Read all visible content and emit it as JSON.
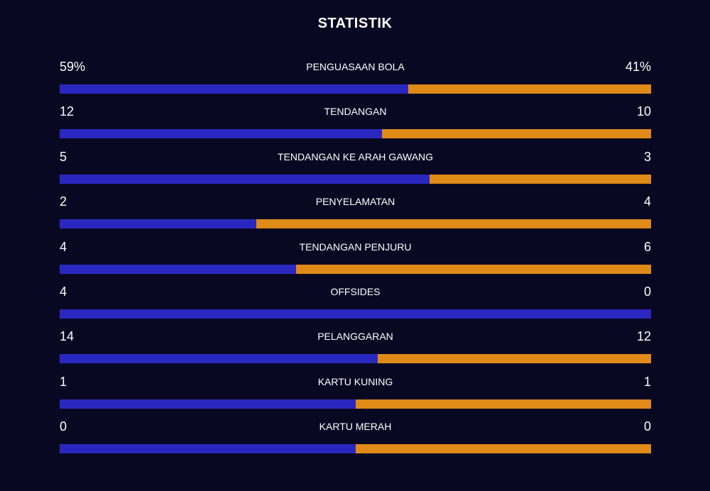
{
  "title": "STATISTIK",
  "colors": {
    "home": "#2a27c1",
    "away": "#e08a18",
    "background": "#090822",
    "text": "#ffffff"
  },
  "stats": [
    {
      "label": "PENGUASAAN BOLA",
      "home": "59%",
      "away": "41%",
      "home_share": 0.59
    },
    {
      "label": "TENDANGAN",
      "home": "12",
      "away": "10",
      "home_share": 0.545
    },
    {
      "label": "TENDANGAN KE ARAH GAWANG",
      "home": "5",
      "away": "3",
      "home_share": 0.625
    },
    {
      "label": "PENYELAMATAN",
      "home": "2",
      "away": "4",
      "home_share": 0.333
    },
    {
      "label": "TENDANGAN PENJURU",
      "home": "4",
      "away": "6",
      "home_share": 0.4
    },
    {
      "label": "OFFSIDES",
      "home": "4",
      "away": "0",
      "home_share": 1.0
    },
    {
      "label": "PELANGGARAN",
      "home": "14",
      "away": "12",
      "home_share": 0.538
    },
    {
      "label": "KARTU KUNING",
      "home": "1",
      "away": "1",
      "home_share": 0.5
    },
    {
      "label": "KARTU MERAH",
      "home": "0",
      "away": "0",
      "home_share": 0.5
    }
  ]
}
